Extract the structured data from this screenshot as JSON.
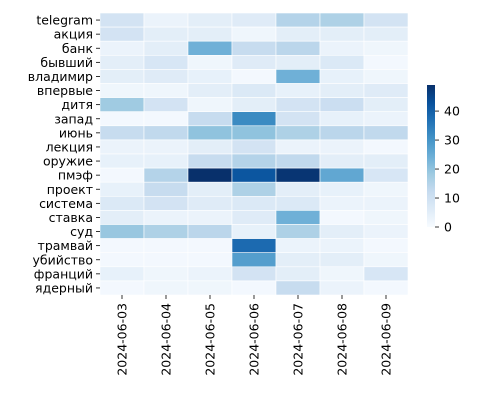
{
  "chart_data": {
    "type": "heatmap",
    "title": "",
    "xlabel": "",
    "ylabel": "",
    "x": [
      "2024-06-03",
      "2024-06-04",
      "2024-06-05",
      "2024-06-06",
      "2024-06-07",
      "2024-06-08",
      "2024-06-09"
    ],
    "y": [
      "telegram",
      "акция",
      "банк",
      "бывший",
      "владимир",
      "впервые",
      "дитя",
      "запад",
      "июнь",
      "лекция",
      "оружие",
      "пмэф",
      "проект",
      "система",
      "ставка",
      "суд",
      "трамвай",
      "убийство",
      "франций",
      "ядерный"
    ],
    "values": [
      [
        9,
        3,
        5,
        6,
        15,
        16,
        9
      ],
      [
        9,
        5,
        5,
        2,
        5,
        5,
        5
      ],
      [
        3,
        5,
        24,
        12,
        14,
        3,
        2
      ],
      [
        5,
        8,
        2,
        6,
        5,
        7,
        1
      ],
      [
        5,
        6,
        4,
        1,
        24,
        4,
        2
      ],
      [
        2,
        2,
        5,
        7,
        4,
        5,
        6
      ],
      [
        18,
        9,
        2,
        5,
        9,
        11,
        5
      ],
      [
        1,
        1,
        12,
        32,
        9,
        4,
        3
      ],
      [
        12,
        13,
        20,
        20,
        16,
        14,
        13
      ],
      [
        3,
        3,
        5,
        9,
        3,
        3,
        1
      ],
      [
        4,
        4,
        12,
        15,
        13,
        5,
        5
      ],
      [
        1,
        15,
        49,
        42,
        48,
        26,
        8
      ],
      [
        4,
        12,
        5,
        16,
        5,
        4,
        2
      ],
      [
        7,
        9,
        6,
        7,
        7,
        3,
        3
      ],
      [
        5,
        3,
        3,
        6,
        24,
        1,
        2
      ],
      [
        19,
        16,
        14,
        4,
        16,
        5,
        3
      ],
      [
        1,
        1,
        1,
        38,
        3,
        3,
        1
      ],
      [
        1,
        1,
        1,
        28,
        5,
        5,
        2
      ],
      [
        4,
        2,
        3,
        9,
        5,
        2,
        8
      ],
      [
        1,
        2,
        2,
        1,
        12,
        3,
        1
      ]
    ],
    "color_range": [
      0,
      49
    ],
    "colormap": "Blues",
    "colorbar_ticks": [
      0,
      10,
      20,
      30,
      40
    ],
    "grid": false,
    "cell_border_color": "#ffffff"
  }
}
